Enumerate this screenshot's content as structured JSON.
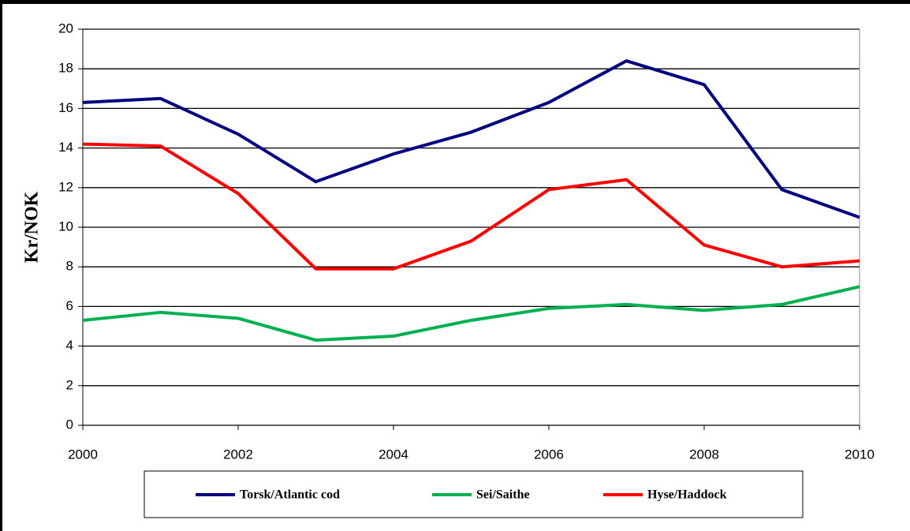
{
  "chart_data": {
    "type": "line",
    "y_label": "Kr/NOK",
    "x": [
      2000,
      2001,
      2002,
      2003,
      2004,
      2005,
      2006,
      2007,
      2008,
      2009,
      2010
    ],
    "series": [
      {
        "name": "Torsk/Atlantic cod",
        "color": "#000080",
        "values": [
          16.3,
          16.5,
          14.7,
          12.3,
          13.7,
          14.8,
          16.3,
          18.4,
          17.2,
          11.9,
          10.5
        ]
      },
      {
        "name": "Sei/Saithe",
        "color": "#00b050",
        "values": [
          5.3,
          5.7,
          5.4,
          4.3,
          4.5,
          5.3,
          5.9,
          6.1,
          5.8,
          6.1,
          7.0
        ]
      },
      {
        "name": "Hyse/Haddock",
        "color": "#ff0000",
        "values": [
          14.2,
          14.1,
          11.7,
          7.9,
          7.9,
          9.3,
          11.9,
          12.4,
          9.1,
          8.0,
          8.3
        ]
      }
    ],
    "xlim": [
      2000,
      2010
    ],
    "xticks": [
      2000,
      2002,
      2004,
      2006,
      2008,
      2010
    ],
    "ylim": [
      0,
      20
    ],
    "yticks": [
      0,
      2,
      4,
      6,
      8,
      10,
      12,
      14,
      16,
      18,
      20
    ],
    "grid": true,
    "legend": "bottom"
  }
}
